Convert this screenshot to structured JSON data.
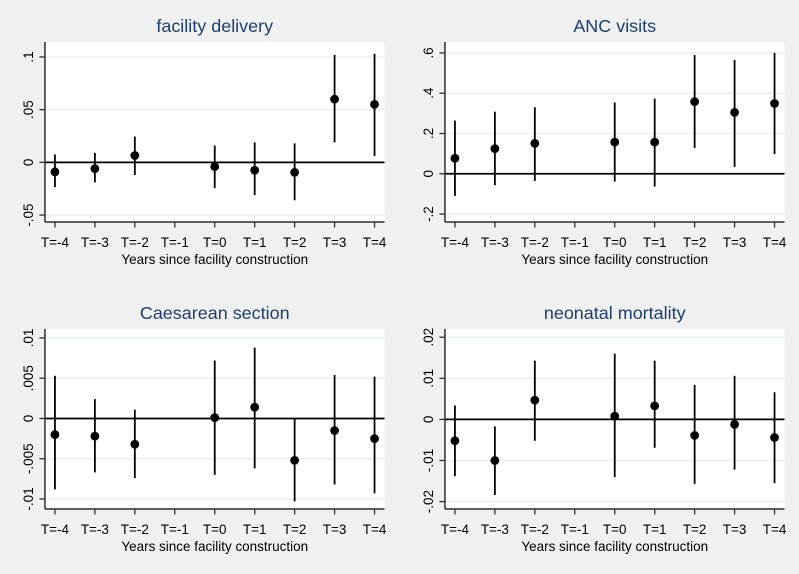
{
  "colors": {
    "canvas_bg": "#eff1f1",
    "plot_bg": "#ffffff",
    "grid": "#e3edf2",
    "axis": "#2e2e2e",
    "zero_line": "#000000",
    "marker": "#000000",
    "title": "#1e3c6e",
    "tick_label": "#000000"
  },
  "chart_data": [
    {
      "type": "scatter",
      "subtype": "coefficient-plot-with-95ci",
      "title": "facility delivery",
      "xlabel": "Years since facility construction",
      "ylabel": "",
      "grid": true,
      "legend": false,
      "categories": [
        "T=-4",
        "T=-3",
        "T=-2",
        "T=-1",
        "T=0",
        "T=1",
        "T=2",
        "T=3",
        "T=4"
      ],
      "yticks": [
        {
          "v": -0.05,
          "label": "-.05"
        },
        {
          "v": 0,
          "label": "0"
        },
        {
          "v": 0.05,
          "label": ".05"
        },
        {
          "v": 0.1,
          "label": ".1"
        }
      ],
      "ylim": [
        -0.0566,
        0.1142
      ],
      "estimates": [
        -0.009,
        -0.006,
        0.0065,
        null,
        -0.004,
        -0.0075,
        -0.0095,
        0.06,
        0.055
      ],
      "ci_lower": [
        -0.0235,
        -0.019,
        -0.012,
        null,
        -0.0245,
        -0.031,
        -0.036,
        0.019,
        0.006
      ],
      "ci_upper": [
        0.0075,
        0.009,
        0.0245,
        null,
        0.016,
        0.019,
        0.018,
        0.102,
        0.103
      ]
    },
    {
      "type": "scatter",
      "subtype": "coefficient-plot-with-95ci",
      "title": "ANC visits",
      "xlabel": "Years since facility construction",
      "ylabel": "",
      "grid": true,
      "legend": false,
      "categories": [
        "T=-4",
        "T=-3",
        "T=-2",
        "T=-1",
        "T=0",
        "T=1",
        "T=2",
        "T=3",
        "T=4"
      ],
      "yticks": [
        {
          "v": -0.2,
          "label": "-.2"
        },
        {
          "v": 0,
          "label": "0"
        },
        {
          "v": 0.2,
          "label": ".2"
        },
        {
          "v": 0.4,
          "label": ".4"
        },
        {
          "v": 0.6,
          "label": ".6"
        }
      ],
      "ylim": [
        -0.2395,
        0.6543
      ],
      "estimates": [
        0.077,
        0.125,
        0.151,
        null,
        0.157,
        0.157,
        0.358,
        0.305,
        0.349
      ],
      "ci_lower": [
        -0.11,
        -0.057,
        -0.035,
        null,
        -0.039,
        -0.064,
        0.128,
        0.034,
        0.098
      ],
      "ci_upper": [
        0.264,
        0.308,
        0.33,
        null,
        0.354,
        0.373,
        0.59,
        0.565,
        0.6
      ]
    },
    {
      "type": "scatter",
      "subtype": "coefficient-plot-with-95ci",
      "title": "Caesarean section",
      "xlabel": "Years since facility construction",
      "ylabel": "",
      "grid": true,
      "legend": false,
      "categories": [
        "T=-4",
        "T=-3",
        "T=-2",
        "T=-1",
        "T=0",
        "T=1",
        "T=2",
        "T=3",
        "T=4"
      ],
      "yticks": [
        {
          "v": -0.01,
          "label": "-.01"
        },
        {
          "v": -0.005,
          "label": "-.005"
        },
        {
          "v": 0,
          "label": "0"
        },
        {
          "v": 0.005,
          "label": ".005"
        },
        {
          "v": 0.01,
          "label": ".01"
        }
      ],
      "ylim": [
        -0.01124,
        0.01111
      ],
      "estimates": [
        -0.002,
        -0.0022,
        -0.0032,
        null,
        0.0001,
        0.0014,
        -0.0052,
        -0.0015,
        -0.0025
      ],
      "ci_lower": [
        -0.0088,
        -0.0067,
        -0.0074,
        null,
        -0.007,
        -0.0062,
        -0.0103,
        -0.0082,
        -0.0093
      ],
      "ci_upper": [
        0.0053,
        0.0024,
        0.0011,
        null,
        0.0072,
        0.0088,
        0.0,
        0.0054,
        0.0052
      ]
    },
    {
      "type": "scatter",
      "subtype": "coefficient-plot-with-95ci",
      "title": "neonatal mortality",
      "xlabel": "Years since facility construction",
      "ylabel": "",
      "grid": true,
      "legend": false,
      "categories": [
        "T=-4",
        "T=-3",
        "T=-2",
        "T=-1",
        "T=0",
        "T=1",
        "T=2",
        "T=3",
        "T=4"
      ],
      "yticks": [
        {
          "v": -0.02,
          "label": "-.02"
        },
        {
          "v": -0.01,
          "label": "-.01"
        },
        {
          "v": 0,
          "label": "0"
        },
        {
          "v": 0.01,
          "label": ".01"
        },
        {
          "v": 0.02,
          "label": ".02"
        }
      ],
      "ylim": [
        -0.0218,
        0.022
      ],
      "estimates": [
        -0.0052,
        -0.01,
        0.0047,
        null,
        0.0008,
        0.0033,
        -0.0039,
        -0.0012,
        -0.0044
      ],
      "ci_lower": [
        -0.0138,
        -0.0184,
        -0.0052,
        null,
        -0.014,
        -0.0069,
        -0.0157,
        -0.0122,
        -0.0155
      ],
      "ci_upper": [
        0.0034,
        -0.0017,
        0.0143,
        null,
        0.016,
        0.0143,
        0.0084,
        0.0106,
        0.0066
      ]
    }
  ]
}
